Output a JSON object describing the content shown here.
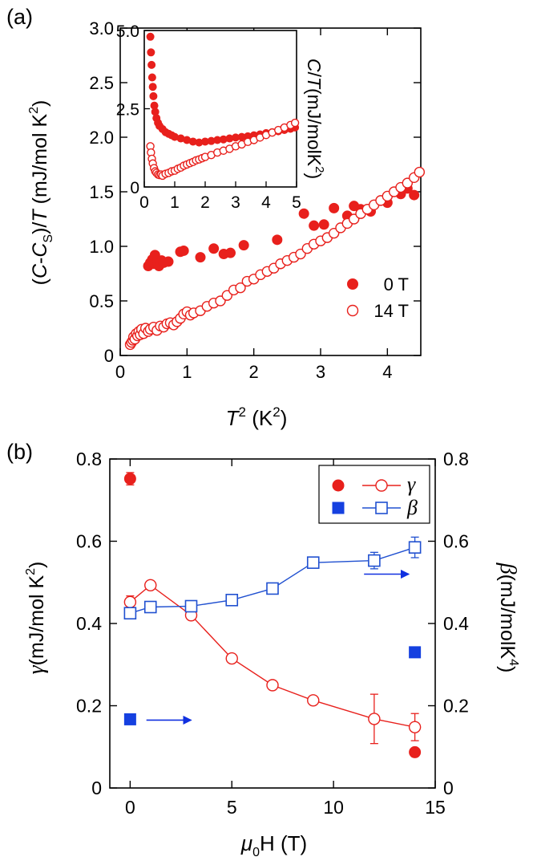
{
  "chart_data": [
    {
      "panel_label": "(a)",
      "type": "scatter",
      "title": "",
      "xlabel_base": "T",
      "xlabel_sup": "2",
      "xlabel_units": " (K",
      "xlabel_units_sup": "2",
      "xlabel_close": ")",
      "ylabel_parts": [
        "(C-C",
        "S",
        ")/T  (mJ/mol K",
        "2",
        ")"
      ],
      "xlim": [
        0,
        4.5
      ],
      "ylim": [
        0,
        3.0
      ],
      "xticks": [
        0,
        1,
        2,
        3,
        4
      ],
      "xtick_labels": [
        "0",
        "1",
        "2",
        "3",
        "4"
      ],
      "yticks": [
        0,
        0.5,
        1.0,
        1.5,
        2.0,
        2.5,
        3.0
      ],
      "ytick_labels": [
        "0",
        "0.5",
        "1.0",
        "1.5",
        "2.0",
        "2.5",
        "3.0"
      ],
      "legend_position": "lower-right",
      "series": [
        {
          "name": "0 T",
          "marker": "filled-circle",
          "color": "#e8201c",
          "points": [
            [
              0.42,
              0.82
            ],
            [
              0.45,
              0.85
            ],
            [
              0.48,
              0.88
            ],
            [
              0.5,
              0.84
            ],
            [
              0.52,
              0.92
            ],
            [
              0.55,
              0.86
            ],
            [
              0.58,
              0.82
            ],
            [
              0.62,
              0.87
            ],
            [
              0.65,
              0.85
            ],
            [
              0.72,
              0.86
            ],
            [
              0.9,
              0.95
            ],
            [
              0.95,
              0.96
            ],
            [
              1.2,
              0.9
            ],
            [
              1.4,
              0.98
            ],
            [
              1.55,
              0.93
            ],
            [
              1.65,
              0.94
            ],
            [
              1.85,
              1.01
            ],
            [
              2.35,
              1.06
            ],
            [
              2.75,
              1.3
            ],
            [
              2.9,
              1.19
            ],
            [
              3.05,
              1.2
            ],
            [
              3.2,
              1.35
            ],
            [
              3.4,
              1.28
            ],
            [
              3.5,
              1.37
            ],
            [
              3.6,
              1.34
            ],
            [
              3.75,
              1.32
            ],
            [
              3.9,
              1.42
            ],
            [
              4.0,
              1.4
            ],
            [
              4.1,
              1.5
            ],
            [
              4.2,
              1.48
            ],
            [
              4.3,
              1.53
            ],
            [
              4.4,
              1.47
            ]
          ]
        },
        {
          "name": "14 T",
          "marker": "open-circle",
          "color": "#e8201c",
          "points": [
            [
              0.15,
              0.1
            ],
            [
              0.17,
              0.12
            ],
            [
              0.19,
              0.14
            ],
            [
              0.2,
              0.17
            ],
            [
              0.22,
              0.15
            ],
            [
              0.24,
              0.2
            ],
            [
              0.26,
              0.18
            ],
            [
              0.28,
              0.22
            ],
            [
              0.3,
              0.19
            ],
            [
              0.32,
              0.24
            ],
            [
              0.35,
              0.2
            ],
            [
              0.38,
              0.25
            ],
            [
              0.42,
              0.22
            ],
            [
              0.45,
              0.24
            ],
            [
              0.5,
              0.26
            ],
            [
              0.55,
              0.23
            ],
            [
              0.6,
              0.27
            ],
            [
              0.65,
              0.26
            ],
            [
              0.7,
              0.29
            ],
            [
              0.75,
              0.3
            ],
            [
              0.8,
              0.28
            ],
            [
              0.85,
              0.31
            ],
            [
              0.9,
              0.34
            ],
            [
              0.95,
              0.38
            ],
            [
              1.0,
              0.4
            ],
            [
              1.05,
              0.37
            ],
            [
              1.1,
              0.39
            ],
            [
              1.2,
              0.41
            ],
            [
              1.3,
              0.45
            ],
            [
              1.4,
              0.48
            ],
            [
              1.5,
              0.5
            ],
            [
              1.6,
              0.55
            ],
            [
              1.7,
              0.6
            ],
            [
              1.8,
              0.62
            ],
            [
              1.9,
              0.68
            ],
            [
              2.0,
              0.7
            ],
            [
              2.1,
              0.74
            ],
            [
              2.2,
              0.77
            ],
            [
              2.3,
              0.8
            ],
            [
              2.4,
              0.84
            ],
            [
              2.5,
              0.87
            ],
            [
              2.6,
              0.9
            ],
            [
              2.7,
              0.93
            ],
            [
              2.8,
              0.98
            ],
            [
              2.9,
              1.02
            ],
            [
              3.0,
              1.05
            ],
            [
              3.1,
              1.08
            ],
            [
              3.2,
              1.12
            ],
            [
              3.3,
              1.17
            ],
            [
              3.4,
              1.21
            ],
            [
              3.5,
              1.25
            ],
            [
              3.6,
              1.3
            ],
            [
              3.7,
              1.34
            ],
            [
              3.8,
              1.38
            ],
            [
              3.9,
              1.42
            ],
            [
              4.0,
              1.46
            ],
            [
              4.1,
              1.5
            ],
            [
              4.2,
              1.54
            ],
            [
              4.3,
              1.58
            ],
            [
              4.4,
              1.63
            ],
            [
              4.48,
              1.68
            ]
          ]
        }
      ]
    },
    {
      "panel_label": "inset",
      "type": "scatter",
      "xlim": [
        0,
        5
      ],
      "ylim": [
        0,
        5.0
      ],
      "xticks": [
        0,
        1,
        2,
        3,
        4,
        5
      ],
      "xtick_labels": [
        "0",
        "1",
        "2",
        "3",
        "4",
        "5"
      ],
      "yticks": [
        0,
        2.5,
        5.0
      ],
      "ytick_labels": [
        "0",
        "2.5",
        "5.0"
      ],
      "ylabel_parts": [
        "C/T(mJ/molK",
        "2",
        ")"
      ],
      "series": [
        {
          "name": "0 T",
          "marker": "filled-circle",
          "color": "#e8201c",
          "points": [
            [
              0.2,
              4.8
            ],
            [
              0.22,
              4.3
            ],
            [
              0.24,
              3.9
            ],
            [
              0.26,
              3.5
            ],
            [
              0.28,
              3.2
            ],
            [
              0.3,
              2.9
            ],
            [
              0.33,
              2.6
            ],
            [
              0.36,
              2.4
            ],
            [
              0.4,
              2.2
            ],
            [
              0.45,
              2.05
            ],
            [
              0.5,
              1.95
            ],
            [
              0.6,
              1.85
            ],
            [
              0.7,
              1.75
            ],
            [
              0.8,
              1.7
            ],
            [
              0.9,
              1.65
            ],
            [
              1.0,
              1.6
            ],
            [
              1.2,
              1.55
            ],
            [
              1.4,
              1.5
            ],
            [
              1.6,
              1.45
            ],
            [
              1.8,
              1.42
            ],
            [
              2.0,
              1.45
            ],
            [
              2.2,
              1.47
            ],
            [
              2.4,
              1.5
            ],
            [
              2.6,
              1.52
            ],
            [
              2.8,
              1.55
            ],
            [
              3.0,
              1.58
            ],
            [
              3.2,
              1.6
            ],
            [
              3.4,
              1.62
            ],
            [
              3.6,
              1.65
            ],
            [
              3.8,
              1.68
            ],
            [
              4.0,
              1.72
            ],
            [
              4.2,
              1.75
            ],
            [
              4.4,
              1.78
            ],
            [
              4.6,
              1.82
            ],
            [
              4.8,
              1.86
            ],
            [
              4.95,
              1.9
            ]
          ]
        },
        {
          "name": "14 T",
          "marker": "open-circle",
          "color": "#e8201c",
          "points": [
            [
              0.2,
              1.3
            ],
            [
              0.22,
              1.1
            ],
            [
              0.25,
              0.9
            ],
            [
              0.28,
              0.75
            ],
            [
              0.32,
              0.6
            ],
            [
              0.36,
              0.5
            ],
            [
              0.4,
              0.45
            ],
            [
              0.45,
              0.4
            ],
            [
              0.5,
              0.38
            ],
            [
              0.55,
              0.4
            ],
            [
              0.6,
              0.36
            ],
            [
              0.7,
              0.42
            ],
            [
              0.8,
              0.45
            ],
            [
              0.9,
              0.5
            ],
            [
              1.0,
              0.52
            ],
            [
              1.1,
              0.58
            ],
            [
              1.2,
              0.62
            ],
            [
              1.3,
              0.68
            ],
            [
              1.4,
              0.72
            ],
            [
              1.5,
              0.76
            ],
            [
              1.6,
              0.8
            ],
            [
              1.7,
              0.85
            ],
            [
              1.8,
              0.88
            ],
            [
              1.9,
              0.92
            ],
            [
              2.0,
              0.96
            ],
            [
              2.2,
              1.02
            ],
            [
              2.4,
              1.1
            ],
            [
              2.6,
              1.16
            ],
            [
              2.8,
              1.22
            ],
            [
              3.0,
              1.3
            ],
            [
              3.2,
              1.36
            ],
            [
              3.4,
              1.44
            ],
            [
              3.6,
              1.5
            ],
            [
              3.8,
              1.58
            ],
            [
              4.0,
              1.66
            ],
            [
              4.2,
              1.74
            ],
            [
              4.4,
              1.82
            ],
            [
              4.6,
              1.9
            ],
            [
              4.8,
              1.98
            ],
            [
              4.95,
              2.05
            ]
          ]
        }
      ]
    },
    {
      "panel_label": "(b)",
      "type": "line",
      "xlabel_prefix": "μ",
      "xlabel_sub": "0",
      "xlabel_rest": "H (T)",
      "ylabel_left_symbol": "γ",
      "ylabel_left_parts": [
        "(mJ/mol K",
        "2",
        ")"
      ],
      "ylabel_right_symbol": "β",
      "ylabel_right_parts": [
        "(mJ/molK",
        "4",
        ")"
      ],
      "xlim": [
        -1,
        15
      ],
      "ylim": [
        0,
        0.8
      ],
      "xticks": [
        0,
        5,
        10,
        15
      ],
      "xtick_labels": [
        "0",
        "5",
        "10",
        "15"
      ],
      "yticks": [
        0,
        0.2,
        0.4,
        0.6,
        0.8
      ],
      "ytick_labels": [
        "0",
        "0.2",
        "0.4",
        "0.6",
        "0.8"
      ],
      "legend_position": "top-right",
      "series": [
        {
          "name": "γ",
          "color": "#e8201c",
          "marker": "open-circle",
          "x": [
            0,
            1,
            3,
            5,
            7,
            9,
            12,
            14
          ],
          "y": [
            0.452,
            0.493,
            0.42,
            0.315,
            0.25,
            0.213,
            0.168,
            0.148
          ],
          "err": [
            0.015,
            0.008,
            0.008,
            0.008,
            0.008,
            0.008,
            0.06,
            0.033
          ]
        },
        {
          "name": "γ filled",
          "color": "#e8201c",
          "marker": "filled-circle",
          "x": [
            0,
            14
          ],
          "y": [
            0.752,
            0.087
          ],
          "err": [
            0.015,
            0.008
          ]
        },
        {
          "name": "β",
          "color": "#2050d0",
          "marker": "open-square",
          "x": [
            0,
            1,
            3,
            5,
            7,
            9,
            12,
            14
          ],
          "y": [
            0.425,
            0.44,
            0.442,
            0.457,
            0.485,
            0.548,
            0.553,
            0.585
          ],
          "err": [
            0.008,
            0.006,
            0.006,
            0.006,
            0.006,
            0.006,
            0.02,
            0.025
          ]
        },
        {
          "name": "β filled",
          "color": "#1540e0",
          "marker": "filled-square",
          "x": [
            0,
            14
          ],
          "y": [
            0.167,
            0.33
          ]
        }
      ],
      "arrows": [
        {
          "from": [
            0.8,
            0.165
          ],
          "to": [
            3.0,
            0.165
          ],
          "color": "#1030e0"
        },
        {
          "from": [
            11.5,
            0.52
          ],
          "to": [
            13.7,
            0.52
          ],
          "color": "#1030e0"
        }
      ]
    }
  ]
}
